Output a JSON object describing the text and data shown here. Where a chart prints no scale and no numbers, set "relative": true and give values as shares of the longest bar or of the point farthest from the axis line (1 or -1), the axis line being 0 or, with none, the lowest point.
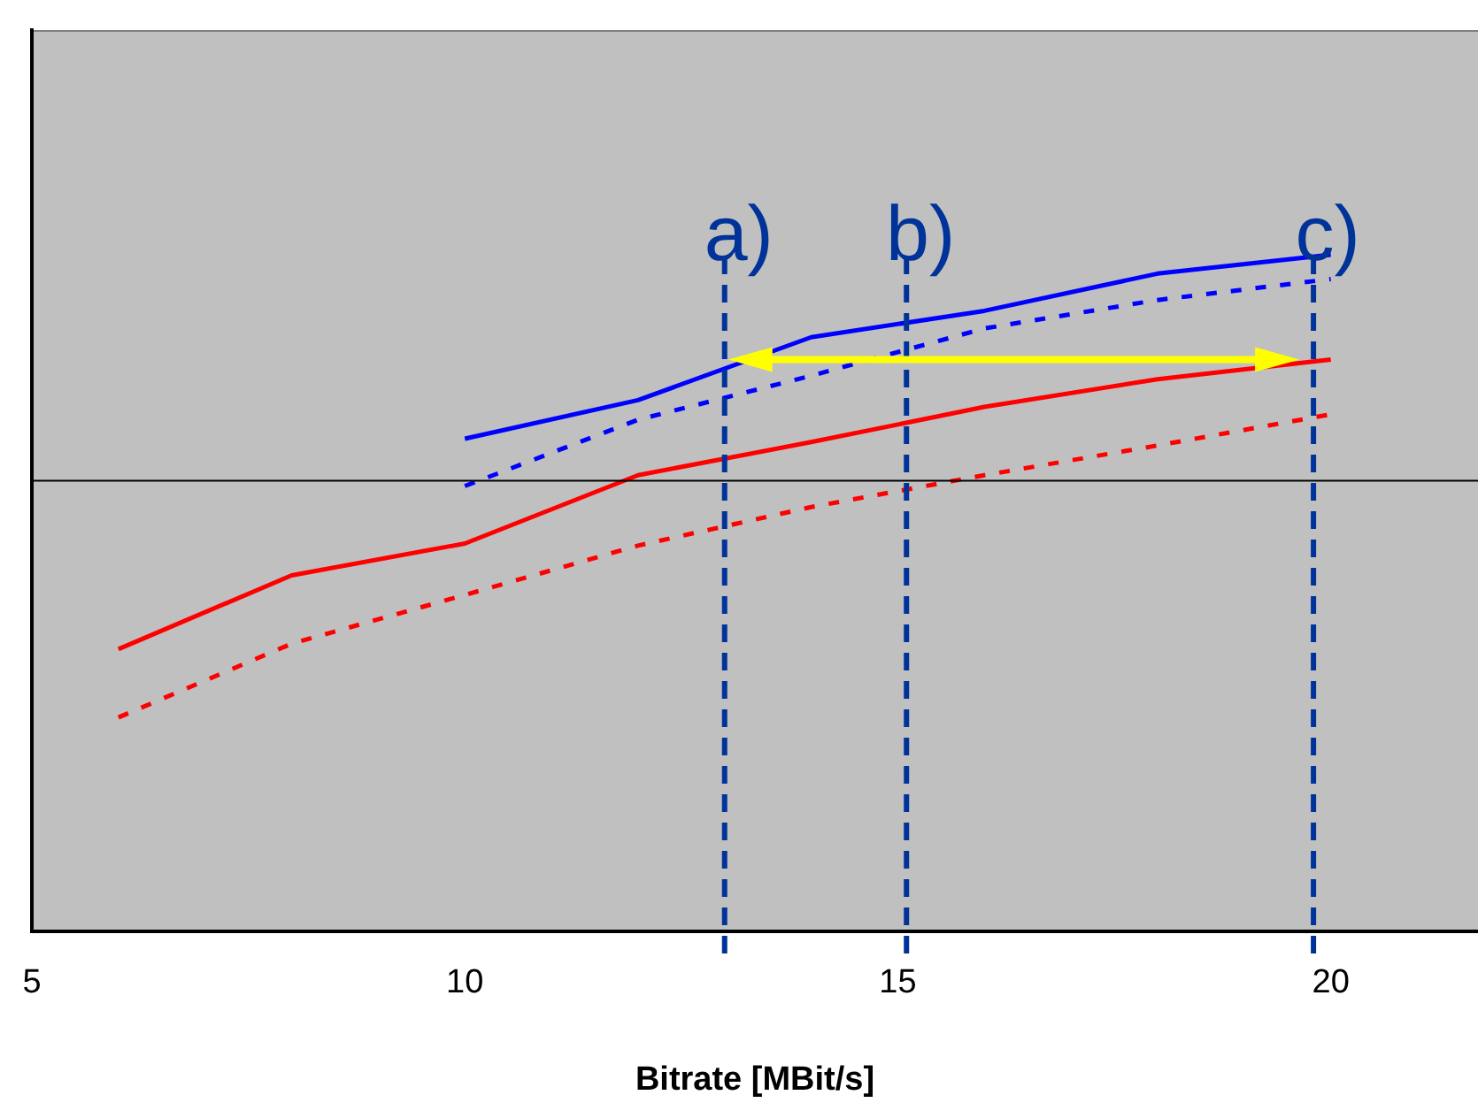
{
  "chart_data": {
    "type": "line",
    "xlabel": "Bitrate [MBit/s]",
    "relative": true,
    "xlim": [
      5,
      21.7
    ],
    "xticks": [
      5,
      10,
      15,
      20
    ],
    "grid": false,
    "legend": false,
    "marker": "none",
    "series": [
      {
        "color": "#ff0000",
        "line_style": "solid",
        "x": [
          6,
          8,
          10,
          12,
          14,
          16,
          18,
          20
        ],
        "values": [
          0.417,
          0.526,
          0.573,
          0.674,
          0.723,
          0.775,
          0.816,
          0.845
        ]
      },
      {
        "color": "#ff0000",
        "line_style": "dotted",
        "x": [
          6,
          8,
          10,
          12,
          14,
          16,
          18,
          20
        ],
        "values": [
          0.316,
          0.425,
          0.497,
          0.57,
          0.627,
          0.674,
          0.718,
          0.764
        ]
      },
      {
        "color": "#0000ff",
        "line_style": "solid",
        "x": [
          10,
          12,
          14,
          16,
          18,
          20
        ],
        "values": [
          0.728,
          0.785,
          0.878,
          0.917,
          0.972,
          1
        ]
      },
      {
        "color": "#0000ff",
        "line_style": "dotted",
        "x": [
          10,
          12,
          14,
          16,
          18,
          20
        ],
        "values": [
          0.658,
          0.756,
          0.821,
          0.891,
          0.933,
          0.964
        ]
      }
    ],
    "ref_lines": [
      {
        "axis": "y",
        "value": 0.666,
        "color": "#000000",
        "line_style": "solid"
      },
      {
        "axis": "x",
        "value": 13,
        "label": "a)",
        "color": "#003399",
        "line_style": "dashed"
      },
      {
        "axis": "x",
        "value": 15.1,
        "label": "b)",
        "color": "#003399",
        "line_style": "dashed"
      },
      {
        "axis": "x",
        "value": 19.8,
        "label": "c)",
        "color": "#003399",
        "line_style": "dashed"
      }
    ]
  }
}
